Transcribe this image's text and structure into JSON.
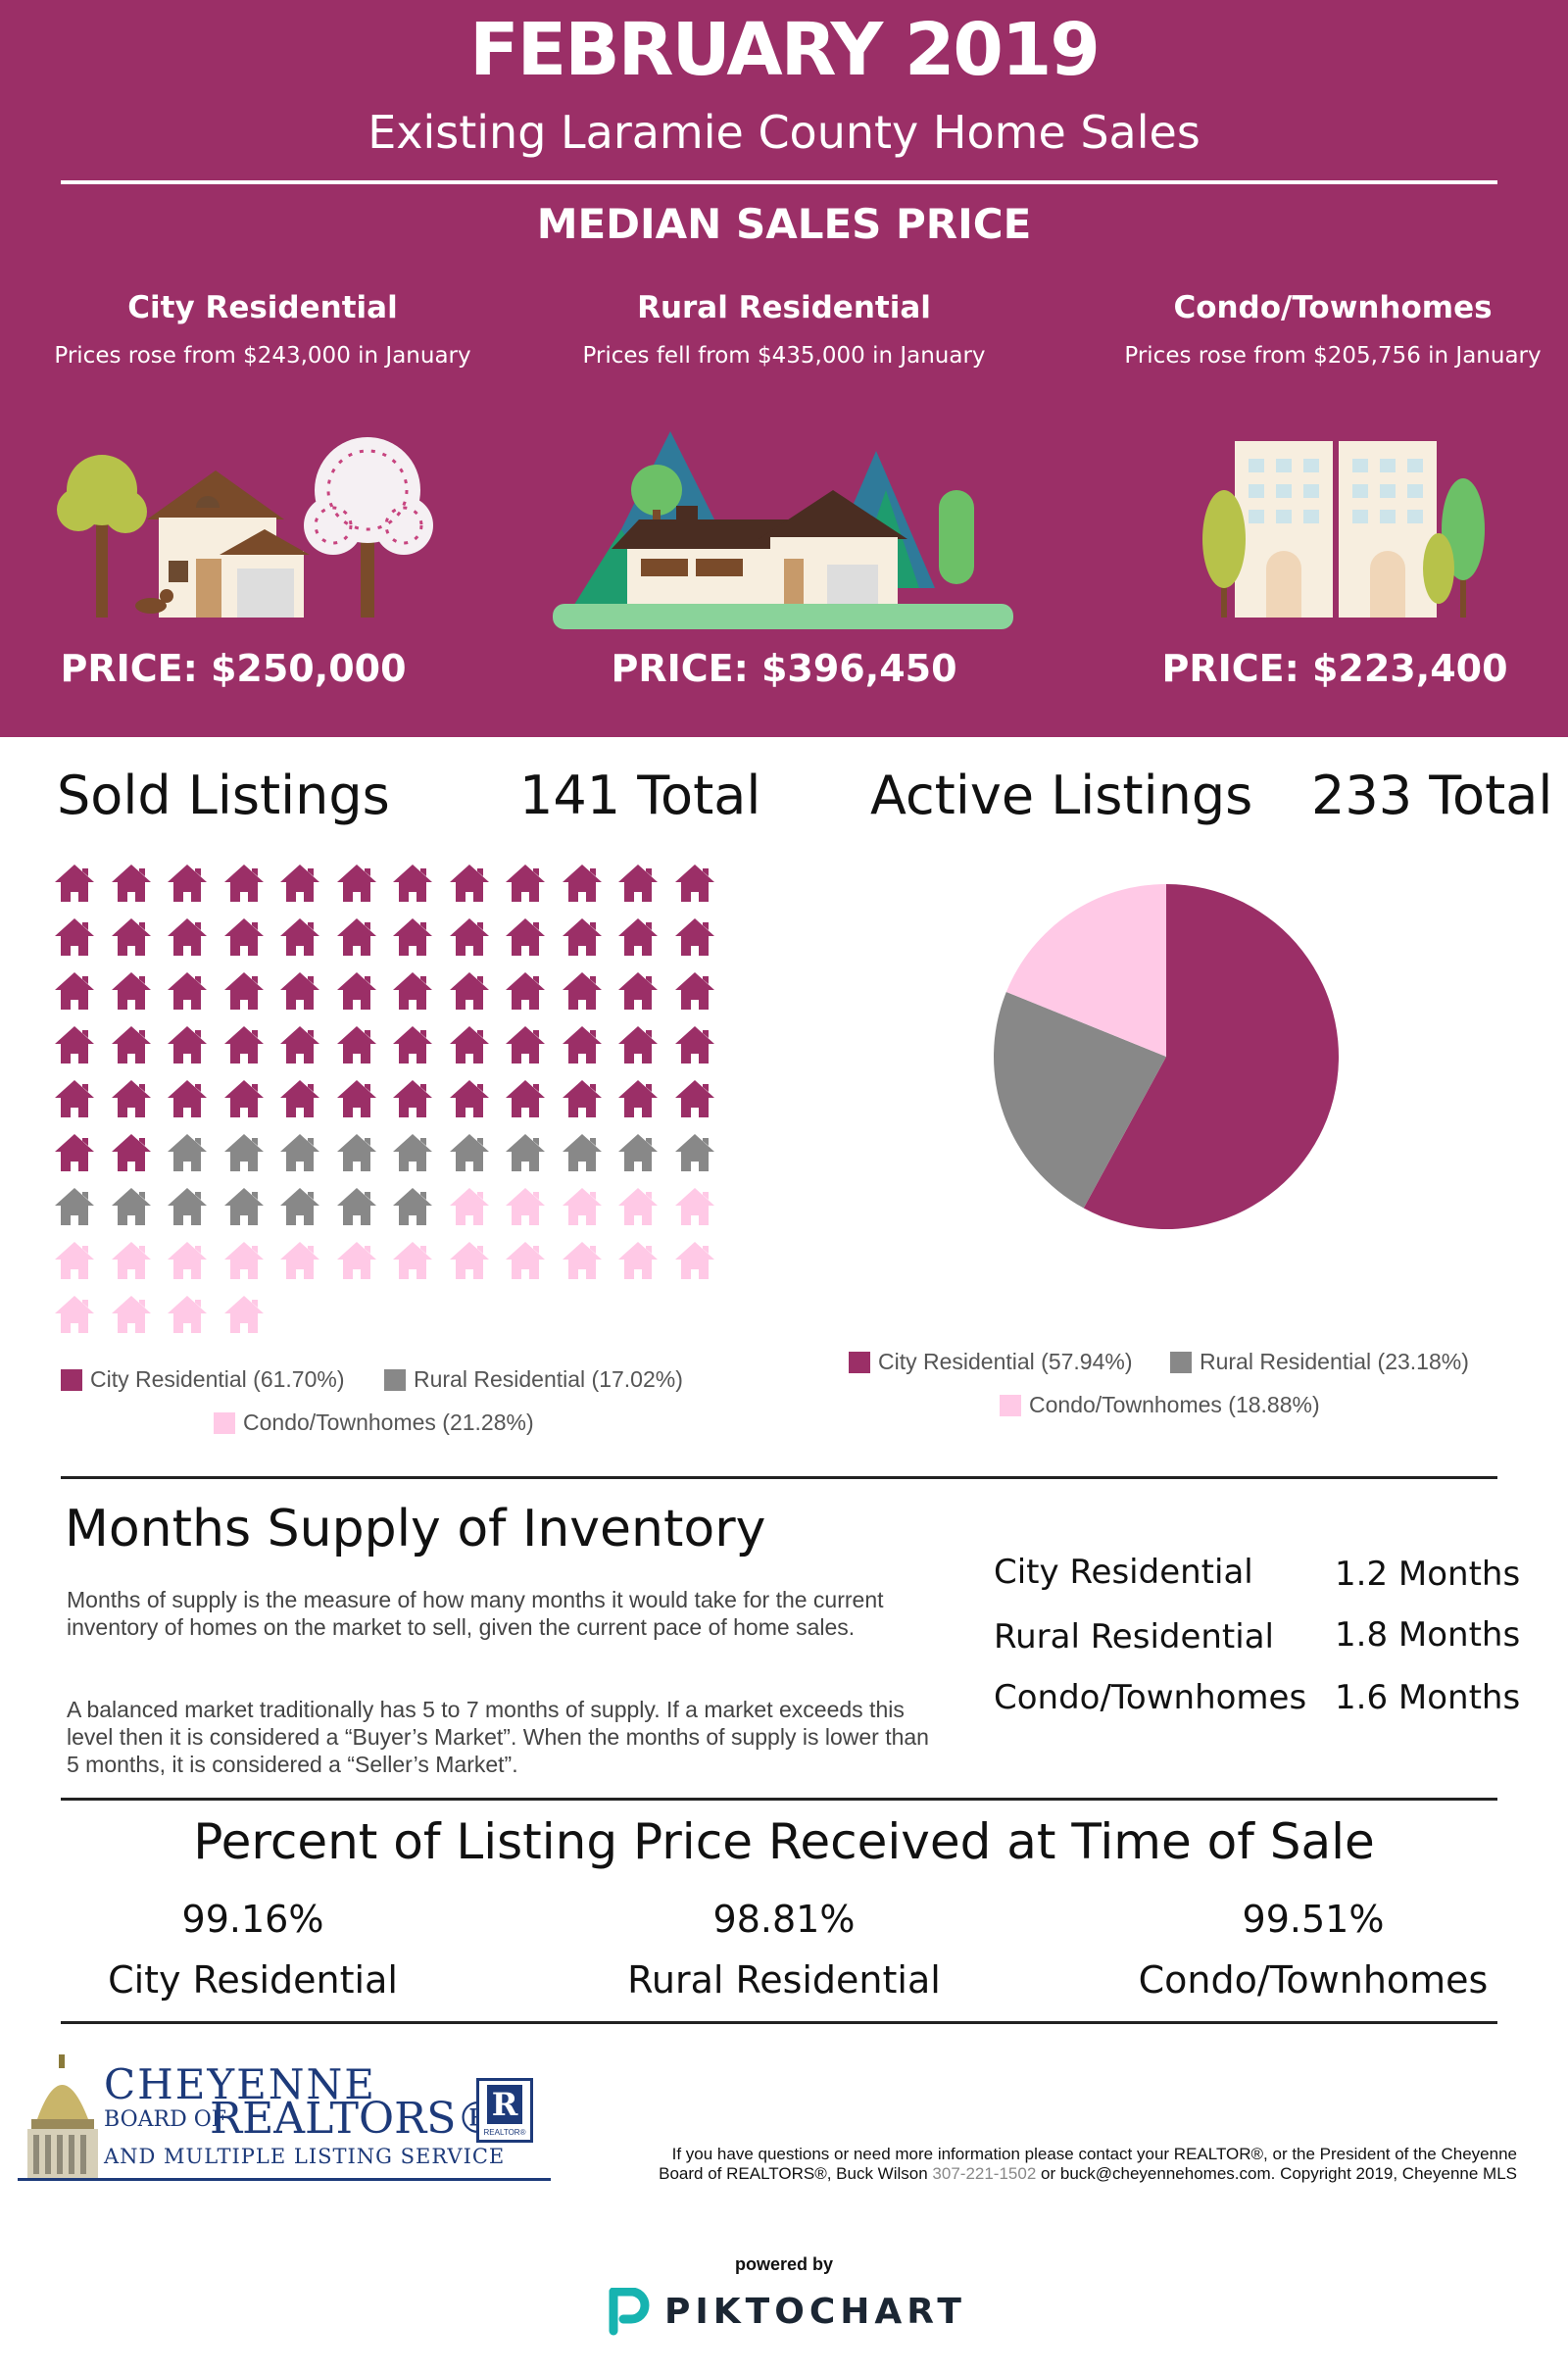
{
  "header": {
    "title": "FEBRUARY 2019",
    "subtitle": "Existing Laramie County Home Sales",
    "section": "MEDIAN SALES PRICE"
  },
  "median": [
    {
      "name": "City Residential",
      "note": "Prices rose from $243,000 in January",
      "price": "PRICE: $250,000"
    },
    {
      "name": "Rural Residential",
      "note": "Prices fell from $435,000 in January",
      "price": "PRICE: $396,450"
    },
    {
      "name": "Condo/Townhomes",
      "note": "Prices rose from $205,756 in January",
      "price": "PRICE: $223,400"
    }
  ],
  "colors": {
    "brand": "#9b2f67",
    "city": "#9b2f67",
    "rural": "#888888",
    "condo": "#ffc9e6"
  },
  "sold": {
    "title": "Sold Listings",
    "total": "141 Total",
    "legend": {
      "city": "City Residential (61.70%)",
      "rural": "Rural Residential (17.02%)",
      "condo": "Condo/Townhomes (21.28%)"
    }
  },
  "active": {
    "title": "Active Listings",
    "total": "233 Total",
    "legend": {
      "city": "City Residential (57.94%)",
      "rural": "Rural Residential (23.18%)",
      "condo": "Condo/Townhomes (18.88%)"
    }
  },
  "chart_data": [
    {
      "type": "pictogram",
      "icon": "house-icon",
      "categories": [
        "City Residential",
        "Rural Residential",
        "Condo/Townhomes"
      ],
      "values": [
        62,
        17,
        21
      ],
      "percents": [
        61.7,
        17.02,
        21.28
      ]
    },
    {
      "type": "pie",
      "categories": [
        "City Residential",
        "Rural Residential",
        "Condo/Townhomes"
      ],
      "values": [
        57.94,
        23.18,
        18.88
      ]
    }
  ],
  "months_supply": {
    "title": "Months Supply of Inventory",
    "para1": "Months of supply is the measure of how many months it would take for the current inventory of homes on the market to sell, given the current pace of home sales.",
    "para2": "A balanced market traditionally has 5 to 7 months of supply. If a market exceeds this level then it is considered a “Buyer’s Market”. When the months of supply is lower than 5 months, it is considered a “Seller’s Market”.",
    "rows": [
      {
        "label": "City Residential",
        "value": "1.2 Months"
      },
      {
        "label": "Rural Residential",
        "value": "1.8 Months"
      },
      {
        "label": "Condo/Townhomes",
        "value": "1.6 Months"
      }
    ]
  },
  "percent_listing": {
    "title": "Percent of Listing Price Received at Time of Sale",
    "items": [
      {
        "value": "99.16%",
        "label": "City Residential"
      },
      {
        "value": "98.81%",
        "label": "Rural Residential"
      },
      {
        "value": "99.51%",
        "label": "Condo/Townhomes"
      }
    ]
  },
  "footer": {
    "logo_l1": "CHEYENNE",
    "logo_board": "BOARD OF",
    "logo_realtors": "REALTORS®",
    "logo_l3": "AND MULTIPLE LISTING SERVICE",
    "badge": "REALTOR®",
    "contact_a": "If you have questions or need more information please contact your REALTOR®, or the President of the Cheyenne",
    "contact_b": "Board of REALTORS®, Buck Wilson ",
    "contact_phone": "307-221-1502",
    "contact_c": " or buck@cheyennehomes.com.  Copyright 2019, Cheyenne MLS",
    "powered": "powered by",
    "brand": "PIKTOCHART"
  }
}
